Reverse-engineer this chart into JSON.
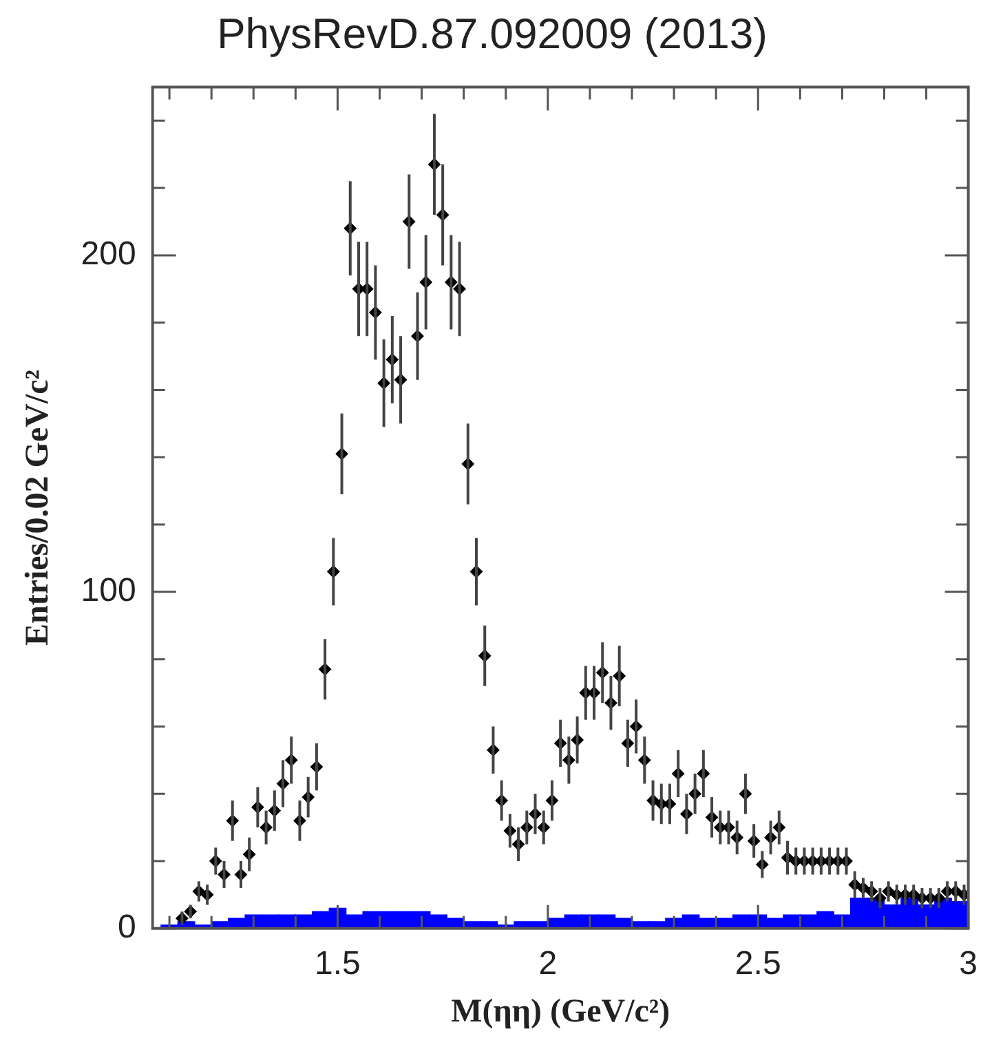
{
  "chart_data": {
    "type": "scatter",
    "title": "PhysRevD.87.092009 (2013)",
    "xlabel": "M(ηη) (GeV/c²)",
    "ylabel": "Entries/0.02 GeV/c²",
    "xlim": [
      1.06,
      3.0
    ],
    "ylim": [
      0,
      250
    ],
    "xticks": [
      {
        "value": 1.1,
        "label": null
      },
      {
        "value": 1.2,
        "label": null
      },
      {
        "value": 1.3,
        "label": null
      },
      {
        "value": 1.4,
        "label": null
      },
      1.5,
      {
        "value": 1.6,
        "label": null
      },
      {
        "value": 1.7,
        "label": null
      },
      {
        "value": 1.8,
        "label": null
      },
      {
        "value": 1.9,
        "label": null
      },
      2,
      {
        "value": 2.1,
        "label": null
      },
      {
        "value": 2.2,
        "label": null
      },
      {
        "value": 2.3,
        "label": null
      },
      {
        "value": 2.4,
        "label": null
      },
      2.5,
      {
        "value": 2.6,
        "label": null
      },
      {
        "value": 2.7,
        "label": null
      },
      {
        "value": 2.8,
        "label": null
      },
      {
        "value": 2.9,
        "label": null
      },
      3
    ],
    "yticks": [
      0,
      {
        "value": 20,
        "label": null
      },
      {
        "value": 40,
        "label": null
      },
      {
        "value": 60,
        "label": null
      },
      {
        "value": 80,
        "label": null
      },
      100,
      {
        "value": 120,
        "label": null
      },
      {
        "value": 140,
        "label": null
      },
      {
        "value": 160,
        "label": null
      },
      {
        "value": 180,
        "label": null
      },
      200,
      {
        "value": 220,
        "label": null
      },
      {
        "value": 240,
        "label": null
      }
    ],
    "legend": false,
    "marker": "diamond",
    "series": [
      {
        "type": "histogram",
        "color": "#0000ff",
        "bins": [
          1.08,
          1.12,
          1.16,
          1.2,
          1.24,
          1.28,
          1.32,
          1.36,
          1.4,
          1.44,
          1.48,
          1.52,
          1.56,
          1.6,
          1.64,
          1.68,
          1.72,
          1.76,
          1.8,
          1.84,
          1.88,
          1.92,
          1.96,
          2.0,
          2.04,
          2.08,
          2.12,
          2.16,
          2.2,
          2.24,
          2.28,
          2.32,
          2.36,
          2.4,
          2.44,
          2.48,
          2.52,
          2.56,
          2.6,
          2.64,
          2.68,
          2.72,
          2.76,
          2.8,
          2.84,
          2.88,
          2.92,
          2.96,
          3.0
        ],
        "values": [
          1,
          2,
          1,
          2,
          3,
          4,
          4,
          4,
          4,
          5,
          6,
          4,
          5,
          5,
          5,
          5,
          4,
          3,
          2,
          2,
          1,
          2,
          2,
          3,
          4,
          4,
          4,
          3,
          2,
          2,
          3,
          4,
          3,
          3,
          4,
          4,
          3,
          4,
          4,
          5,
          4,
          9,
          9,
          7,
          9,
          7,
          9,
          8
        ]
      },
      {
        "color": "#000000",
        "x": [
          1.13,
          1.15,
          1.17,
          1.19,
          1.21,
          1.23,
          1.25,
          1.27,
          1.29,
          1.31,
          1.33,
          1.35,
          1.37,
          1.39,
          1.41,
          1.43,
          1.45,
          1.47,
          1.49,
          1.51,
          1.53,
          1.55,
          1.57,
          1.59,
          1.61,
          1.63,
          1.65,
          1.67,
          1.69,
          1.71,
          1.73,
          1.75,
          1.77,
          1.79,
          1.81,
          1.83,
          1.85,
          1.87,
          1.89,
          1.91,
          1.93,
          1.95,
          1.97,
          1.99,
          2.01,
          2.03,
          2.05,
          2.07,
          2.09,
          2.11,
          2.13,
          2.15,
          2.17,
          2.19,
          2.21,
          2.23,
          2.25,
          2.27,
          2.29,
          2.31,
          2.33,
          2.35,
          2.37,
          2.39,
          2.41,
          2.43,
          2.45,
          2.47,
          2.49,
          2.51,
          2.53,
          2.55,
          2.57,
          2.59,
          2.61,
          2.63,
          2.65,
          2.67,
          2.69,
          2.71,
          2.73,
          2.75,
          2.77,
          2.79,
          2.81,
          2.83,
          2.85,
          2.87,
          2.89,
          2.91,
          2.93,
          2.95,
          2.97,
          2.99
        ],
        "values": [
          3,
          5,
          11,
          10,
          20,
          16,
          32,
          16,
          22,
          36,
          30,
          35,
          43,
          50,
          32,
          39,
          48,
          77,
          106,
          141,
          208,
          190,
          190,
          183,
          162,
          169,
          163,
          210,
          176,
          192,
          227,
          212,
          192,
          190,
          138,
          106,
          81,
          53,
          38,
          29,
          25,
          30,
          34,
          30,
          38,
          55,
          50,
          56,
          70,
          70,
          76,
          67,
          75,
          55,
          60,
          50,
          38,
          37,
          37,
          46,
          34,
          40,
          46,
          33,
          30,
          30,
          27,
          40,
          26,
          19,
          27,
          30,
          21,
          20,
          20,
          20,
          20,
          20,
          20,
          20,
          13,
          12,
          11,
          9,
          11,
          10,
          10,
          10,
          9,
          9,
          9,
          11,
          11,
          10
        ],
        "errors": [
          2,
          2,
          3,
          3,
          4,
          4,
          6,
          4,
          5,
          6,
          5,
          6,
          7,
          7,
          6,
          6,
          7,
          9,
          10,
          12,
          14,
          14,
          14,
          14,
          13,
          13,
          13,
          14,
          13,
          14,
          15,
          15,
          14,
          14,
          12,
          10,
          9,
          7,
          6,
          5,
          5,
          5,
          6,
          5,
          6,
          7,
          7,
          7,
          8,
          8,
          9,
          8,
          9,
          7,
          8,
          7,
          6,
          6,
          6,
          7,
          6,
          6,
          7,
          6,
          5,
          5,
          5,
          6,
          5,
          4,
          5,
          5,
          5,
          4,
          4,
          4,
          4,
          4,
          4,
          4,
          4,
          3,
          3,
          3,
          3,
          3,
          3,
          3,
          3,
          3,
          3,
          3,
          3,
          3
        ]
      }
    ]
  }
}
